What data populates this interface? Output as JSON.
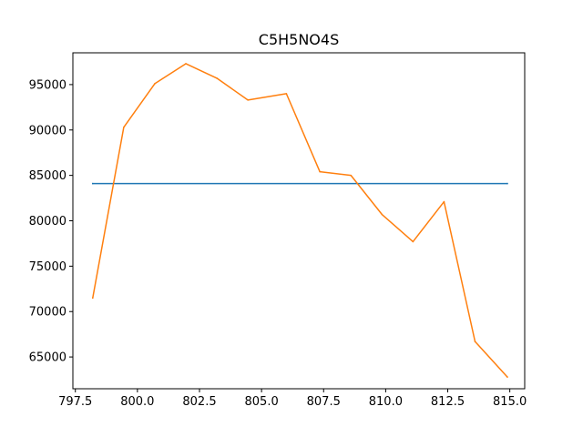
{
  "chart_data": {
    "type": "line",
    "title": "C5H5NO4S",
    "xlabel": "",
    "ylabel": "",
    "xlim": [
      797.4,
      815.6
    ],
    "ylim": [
      61500,
      98500
    ],
    "xticks": [
      797.5,
      800.0,
      802.5,
      805.0,
      807.5,
      810.0,
      812.5,
      815.0
    ],
    "xtick_labels": [
      "797.5",
      "800.0",
      "802.5",
      "805.0",
      "807.5",
      "810.0",
      "812.5",
      "815.0"
    ],
    "yticks": [
      65000,
      70000,
      75000,
      80000,
      85000,
      90000,
      95000
    ],
    "ytick_labels": [
      "65000",
      "70000",
      "75000",
      "80000",
      "85000",
      "90000",
      "95000"
    ],
    "grid": false,
    "series": [
      {
        "color": "#1f77b4",
        "x": [
          798.2,
          814.9
        ],
        "y": [
          84100,
          84100
        ]
      },
      {
        "color": "#ff7f0e",
        "x": [
          798.2,
          799.45,
          800.7,
          801.95,
          803.2,
          804.45,
          806.0,
          807.35,
          808.6,
          809.85,
          811.1,
          812.35,
          813.6,
          814.9
        ],
        "y": [
          71500,
          90300,
          95100,
          97300,
          95700,
          93300,
          94000,
          85400,
          85000,
          80700,
          77700,
          82100,
          66700,
          62800
        ]
      }
    ]
  }
}
